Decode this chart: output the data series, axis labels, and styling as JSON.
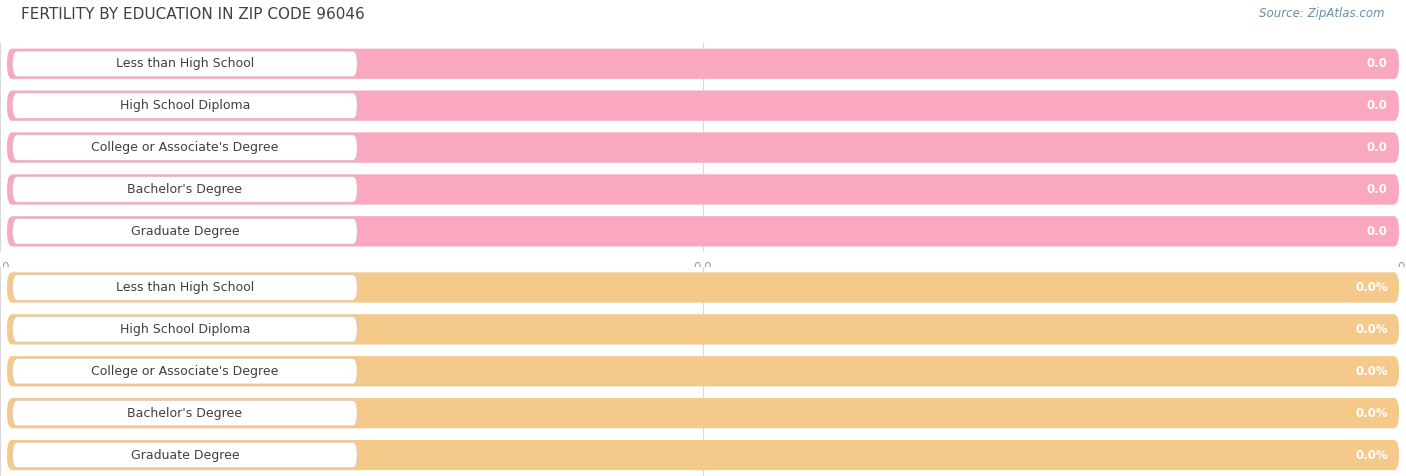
{
  "title": "FERTILITY BY EDUCATION IN ZIP CODE 96046",
  "source_text": "Source: ZipAtlas.com",
  "categories": [
    "Less than High School",
    "High School Diploma",
    "College or Associate's Degree",
    "Bachelor's Degree",
    "Graduate Degree"
  ],
  "values_top": [
    0.0,
    0.0,
    0.0,
    0.0,
    0.0
  ],
  "values_bottom": [
    0.0,
    0.0,
    0.0,
    0.0,
    0.0
  ],
  "bar_color_top": "#f9a8c0",
  "bar_color_bottom": "#f5c98a",
  "bar_bg_color": "#ebebeb",
  "label_bg_color": "#ffffff",
  "label_text_color": "#404040",
  "title_color": "#404040",
  "source_color": "#6a8fa8",
  "axis_label_color": "#999999",
  "grid_color": "#d8d8d8",
  "title_fontsize": 11,
  "label_fontsize": 9,
  "value_fontsize": 8.5,
  "axis_fontsize": 8.5
}
